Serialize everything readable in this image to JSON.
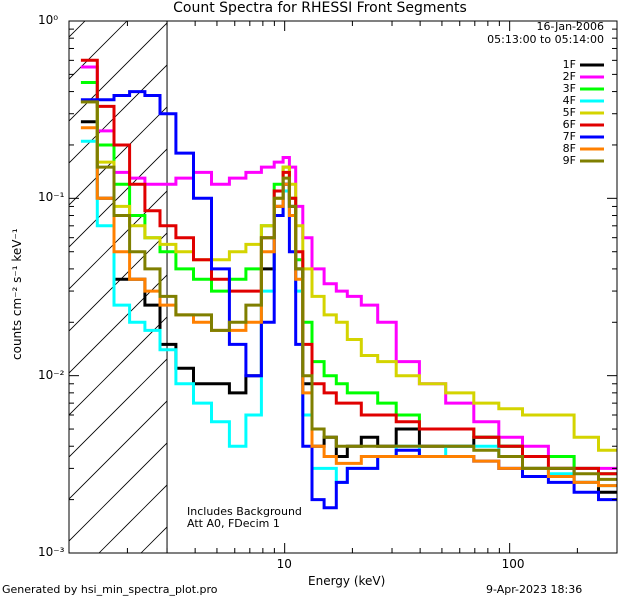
{
  "chart_data": {
    "type": "line",
    "title": "Count Spectra for RHESSI Front Segments",
    "xlabel": "Energy (keV)",
    "ylabel": "counts cm⁻² s⁻¹ keV⁻¹",
    "xscale": "log",
    "yscale": "log",
    "xlim": [
      1.1,
      300
    ],
    "ylim": [
      0.001,
      1
    ],
    "x_ticks": [
      "10",
      "100"
    ],
    "x_tick_values": [
      10,
      100
    ],
    "y_ticks": [
      "10⁰",
      "10⁻¹",
      "10⁻²",
      "10⁻³"
    ],
    "y_tick_values": [
      1,
      0.1,
      0.01,
      0.001
    ],
    "date": "16-Jan-2006",
    "time_range": "05:13:00 to 05:14:00",
    "annotations": [
      "Includes Background",
      "Att A0, FDecim 1"
    ],
    "shaded_region": {
      "x_from": 1.1,
      "x_to": 3.0,
      "pattern": "diagonal hatch"
    },
    "series": [
      {
        "name": "1F",
        "color": "#000000",
        "x": [
          1.35,
          1.6,
          1.9,
          2.2,
          2.6,
          3.0,
          3.6,
          4.3,
          5.2,
          6.2,
          7.3,
          8.5,
          9.5,
          10.2,
          10.8,
          11.6,
          12.5,
          14,
          16,
          18,
          20,
          24,
          28,
          35,
          45,
          60,
          80,
          100,
          130,
          170,
          220,
          280
        ],
        "y": [
          0.27,
          0.1,
          0.035,
          0.035,
          0.025,
          0.015,
          0.011,
          0.009,
          0.009,
          0.008,
          0.01,
          0.04,
          0.09,
          0.12,
          0.09,
          0.04,
          0.009,
          0.004,
          0.0045,
          0.0035,
          0.004,
          0.0045,
          0.004,
          0.005,
          0.004,
          0.004,
          0.0045,
          0.004,
          0.003,
          0.003,
          0.0025,
          0.0022
        ]
      },
      {
        "name": "2F",
        "color": "#ff00ff",
        "x": [
          1.35,
          1.6,
          1.9,
          2.2,
          2.6,
          3.0,
          3.6,
          4.3,
          5.2,
          6.2,
          7.3,
          8.5,
          9.5,
          10.2,
          10.8,
          11.6,
          12.5,
          14,
          16,
          18,
          20,
          24,
          28,
          35,
          45,
          60,
          80,
          100,
          130,
          170,
          220,
          280
        ],
        "y": [
          0.55,
          0.24,
          0.14,
          0.13,
          0.12,
          0.12,
          0.13,
          0.14,
          0.12,
          0.13,
          0.14,
          0.15,
          0.16,
          0.17,
          0.15,
          0.09,
          0.06,
          0.04,
          0.033,
          0.03,
          0.028,
          0.025,
          0.02,
          0.012,
          0.009,
          0.007,
          0.0055,
          0.0045,
          0.004,
          0.0035,
          0.003,
          0.003
        ]
      },
      {
        "name": "3F",
        "color": "#00ff00",
        "x": [
          1.35,
          1.6,
          1.9,
          2.2,
          2.6,
          3.0,
          3.6,
          4.3,
          5.2,
          6.2,
          7.3,
          8.5,
          9.5,
          10.2,
          10.8,
          11.6,
          12.5,
          14,
          16,
          18,
          20,
          24,
          28,
          35,
          45,
          60,
          80,
          100,
          130,
          170,
          220,
          280
        ],
        "y": [
          0.45,
          0.2,
          0.12,
          0.08,
          0.06,
          0.05,
          0.04,
          0.035,
          0.03,
          0.035,
          0.04,
          0.07,
          0.12,
          0.15,
          0.1,
          0.045,
          0.02,
          0.012,
          0.01,
          0.009,
          0.008,
          0.008,
          0.007,
          0.006,
          0.005,
          0.005,
          0.0045,
          0.004,
          0.0035,
          0.0035,
          0.003,
          0.0028
        ]
      },
      {
        "name": "4F",
        "color": "#00ffff",
        "x": [
          1.35,
          1.6,
          1.9,
          2.2,
          2.6,
          3.0,
          3.6,
          4.3,
          5.2,
          6.2,
          7.3,
          8.5,
          9.5,
          10.2,
          10.8,
          11.6,
          12.5,
          14,
          16,
          18,
          20,
          24,
          28,
          35,
          45,
          60,
          80,
          100,
          130,
          170,
          220,
          280
        ],
        "y": [
          0.21,
          0.07,
          0.025,
          0.02,
          0.018,
          0.014,
          0.009,
          0.007,
          0.0055,
          0.004,
          0.006,
          0.03,
          0.08,
          0.11,
          0.08,
          0.03,
          0.006,
          0.003,
          0.003,
          0.0025,
          0.003,
          0.003,
          0.0035,
          0.004,
          0.0035,
          0.004,
          0.004,
          0.0035,
          0.003,
          0.0028,
          0.0025,
          0.0024
        ]
      },
      {
        "name": "5F",
        "color": "#d4d400",
        "x": [
          1.35,
          1.6,
          1.9,
          2.2,
          2.6,
          3.0,
          3.6,
          4.3,
          5.2,
          6.2,
          7.3,
          8.5,
          9.5,
          10.2,
          10.8,
          11.6,
          12.5,
          14,
          16,
          18,
          20,
          24,
          28,
          35,
          45,
          60,
          80,
          100,
          130,
          170,
          220,
          280
        ],
        "y": [
          0.35,
          0.16,
          0.09,
          0.07,
          0.06,
          0.055,
          0.05,
          0.045,
          0.045,
          0.05,
          0.055,
          0.07,
          0.1,
          0.15,
          0.12,
          0.07,
          0.04,
          0.028,
          0.022,
          0.02,
          0.016,
          0.013,
          0.012,
          0.01,
          0.009,
          0.008,
          0.007,
          0.0065,
          0.006,
          0.006,
          0.0045,
          0.0038
        ]
      },
      {
        "name": "6F",
        "color": "#e00000",
        "x": [
          1.35,
          1.6,
          1.9,
          2.2,
          2.6,
          3.0,
          3.6,
          4.3,
          5.2,
          6.2,
          7.3,
          8.5,
          9.5,
          10.2,
          10.8,
          11.6,
          12.5,
          14,
          16,
          18,
          20,
          24,
          28,
          35,
          45,
          60,
          80,
          100,
          130,
          170,
          220,
          280
        ],
        "y": [
          0.6,
          0.33,
          0.2,
          0.12,
          0.085,
          0.07,
          0.06,
          0.045,
          0.035,
          0.03,
          0.03,
          0.06,
          0.11,
          0.14,
          0.1,
          0.05,
          0.015,
          0.009,
          0.008,
          0.007,
          0.007,
          0.006,
          0.006,
          0.0055,
          0.005,
          0.005,
          0.0045,
          0.004,
          0.0035,
          0.003,
          0.003,
          0.0028
        ]
      },
      {
        "name": "7F",
        "color": "#0000ff",
        "x": [
          1.35,
          1.6,
          1.9,
          2.2,
          2.6,
          3.0,
          3.6,
          4.3,
          5.2,
          6.2,
          7.3,
          8.5,
          9.5,
          10.2,
          10.8,
          11.6,
          12.5,
          14,
          16,
          18,
          20,
          24,
          28,
          35,
          45,
          60,
          80,
          100,
          130,
          170,
          220,
          280
        ],
        "y": [
          0.36,
          0.36,
          0.38,
          0.4,
          0.38,
          0.3,
          0.18,
          0.1,
          0.04,
          0.015,
          0.01,
          0.02,
          0.08,
          0.12,
          0.05,
          0.015,
          0.004,
          0.002,
          0.0018,
          0.0025,
          0.003,
          0.003,
          0.0035,
          0.0038,
          0.0035,
          0.0035,
          0.0033,
          0.003,
          0.0027,
          0.0025,
          0.0022,
          0.002
        ]
      },
      {
        "name": "8F",
        "color": "#ff8000",
        "x": [
          1.35,
          1.6,
          1.9,
          2.2,
          2.6,
          3.0,
          3.6,
          4.3,
          5.2,
          6.2,
          7.3,
          8.5,
          9.5,
          10.2,
          10.8,
          11.6,
          12.5,
          14,
          16,
          18,
          20,
          24,
          28,
          35,
          45,
          60,
          80,
          100,
          130,
          170,
          220,
          280
        ],
        "y": [
          0.25,
          0.1,
          0.05,
          0.035,
          0.03,
          0.025,
          0.022,
          0.02,
          0.018,
          0.018,
          0.02,
          0.05,
          0.09,
          0.12,
          0.08,
          0.035,
          0.008,
          0.004,
          0.0035,
          0.0032,
          0.0032,
          0.0035,
          0.0035,
          0.0035,
          0.0035,
          0.0035,
          0.0033,
          0.003,
          0.003,
          0.0027,
          0.0025,
          0.0024
        ]
      },
      {
        "name": "9F",
        "color": "#7f7f00",
        "x": [
          1.35,
          1.6,
          1.9,
          2.2,
          2.6,
          3.0,
          3.6,
          4.3,
          5.2,
          6.2,
          7.3,
          8.5,
          9.5,
          10.2,
          10.8,
          11.6,
          12.5,
          14,
          16,
          18,
          20,
          24,
          28,
          35,
          45,
          60,
          80,
          100,
          130,
          170,
          220,
          280
        ],
        "y": [
          0.35,
          0.15,
          0.08,
          0.05,
          0.04,
          0.028,
          0.022,
          0.022,
          0.018,
          0.02,
          0.025,
          0.06,
          0.1,
          0.13,
          0.09,
          0.04,
          0.01,
          0.005,
          0.0045,
          0.004,
          0.004,
          0.004,
          0.004,
          0.004,
          0.004,
          0.004,
          0.0038,
          0.0035,
          0.003,
          0.003,
          0.0028,
          0.0026
        ]
      }
    ]
  },
  "footer": {
    "generated_by": "Generated by hsi_min_spectra_plot.pro",
    "timestamp": "9-Apr-2023 18:36"
  }
}
